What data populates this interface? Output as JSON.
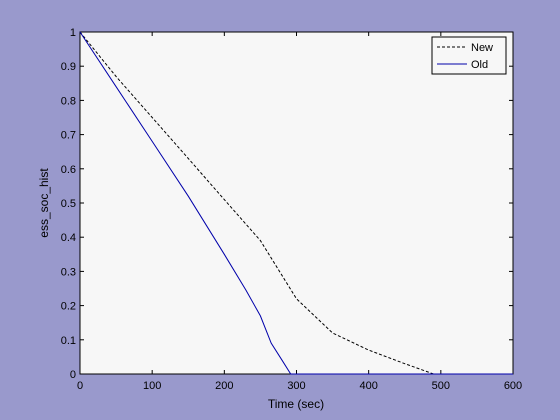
{
  "chart_data": {
    "type": "line",
    "title": "",
    "xlabel": "Time (sec)",
    "ylabel": "ess_soc_hist",
    "xlim": [
      0,
      600
    ],
    "ylim": [
      0,
      1
    ],
    "xticks": [
      0,
      100,
      200,
      300,
      400,
      500,
      600
    ],
    "yticks": [
      0,
      0.1,
      0.2,
      0.3,
      0.4,
      0.5,
      0.6,
      0.7,
      0.8,
      0.9,
      1
    ],
    "grid": false,
    "legend": {
      "placement": "top-right"
    },
    "series": [
      {
        "name": "New",
        "style": "dashed",
        "color": "#000000",
        "x": [
          0,
          50,
          100,
          150,
          200,
          250,
          300,
          350,
          400,
          450,
          490,
          600
        ],
        "y": [
          1.0,
          0.87,
          0.75,
          0.63,
          0.51,
          0.39,
          0.22,
          0.12,
          0.07,
          0.03,
          0.0,
          0.0
        ]
      },
      {
        "name": "Old",
        "style": "solid",
        "color": "#0000aa",
        "x": [
          0,
          50,
          100,
          150,
          200,
          230,
          250,
          265,
          280,
          292,
          600
        ],
        "y": [
          1.0,
          0.84,
          0.68,
          0.52,
          0.35,
          0.245,
          0.17,
          0.09,
          0.04,
          0.0,
          0.0
        ]
      }
    ]
  }
}
